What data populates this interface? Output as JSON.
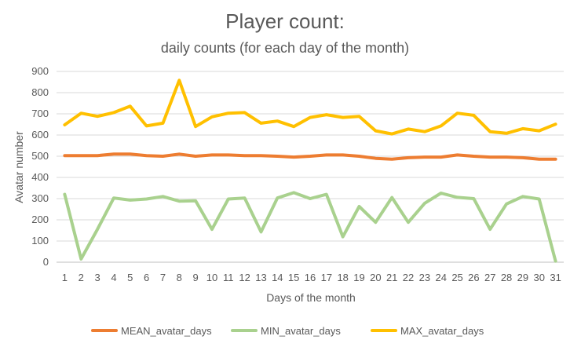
{
  "chart_data": {
    "type": "line",
    "title": "Player count:",
    "subtitle": "daily counts (for each day of the month)",
    "xlabel": "Days of the month",
    "ylabel": "Avatar number",
    "ylim": [
      0,
      900
    ],
    "yticks": [
      0,
      100,
      200,
      300,
      400,
      500,
      600,
      700,
      800,
      900
    ],
    "categories": [
      "1",
      "2",
      "3",
      "4",
      "5",
      "6",
      "7",
      "8",
      "9",
      "10",
      "11",
      "12",
      "13",
      "14",
      "15",
      "16",
      "17",
      "18",
      "19",
      "20",
      "21",
      "22",
      "23",
      "24",
      "25",
      "26",
      "27",
      "28",
      "29",
      "30",
      "31"
    ],
    "grid": "horizontal",
    "legend_position": "bottom",
    "series": [
      {
        "name": "MEAN_avatar_days",
        "color": "#ED7D31",
        "values": [
          503,
          503,
          503,
          510,
          510,
          503,
          500,
          510,
          500,
          506,
          506,
          503,
          503,
          500,
          496,
          500,
          506,
          506,
          500,
          490,
          486,
          493,
          496,
          496,
          506,
          500,
          496,
          496,
          493,
          486,
          486
        ]
      },
      {
        "name": "MIN_avatar_days",
        "color": "#A9D18E",
        "values": [
          320,
          15,
          155,
          303,
          293,
          298,
          310,
          288,
          290,
          155,
          298,
          303,
          143,
          303,
          328,
          300,
          320,
          120,
          263,
          188,
          305,
          188,
          278,
          326,
          306,
          300,
          155,
          275,
          310,
          298,
          5
        ]
      },
      {
        "name": "MAX_avatar_days",
        "color": "#FFC000",
        "values": [
          648,
          703,
          688,
          706,
          736,
          643,
          656,
          858,
          640,
          686,
          703,
          706,
          656,
          666,
          640,
          683,
          696,
          683,
          688,
          620,
          605,
          628,
          616,
          643,
          703,
          693,
          616,
          608,
          630,
          620,
          651
        ]
      }
    ]
  }
}
